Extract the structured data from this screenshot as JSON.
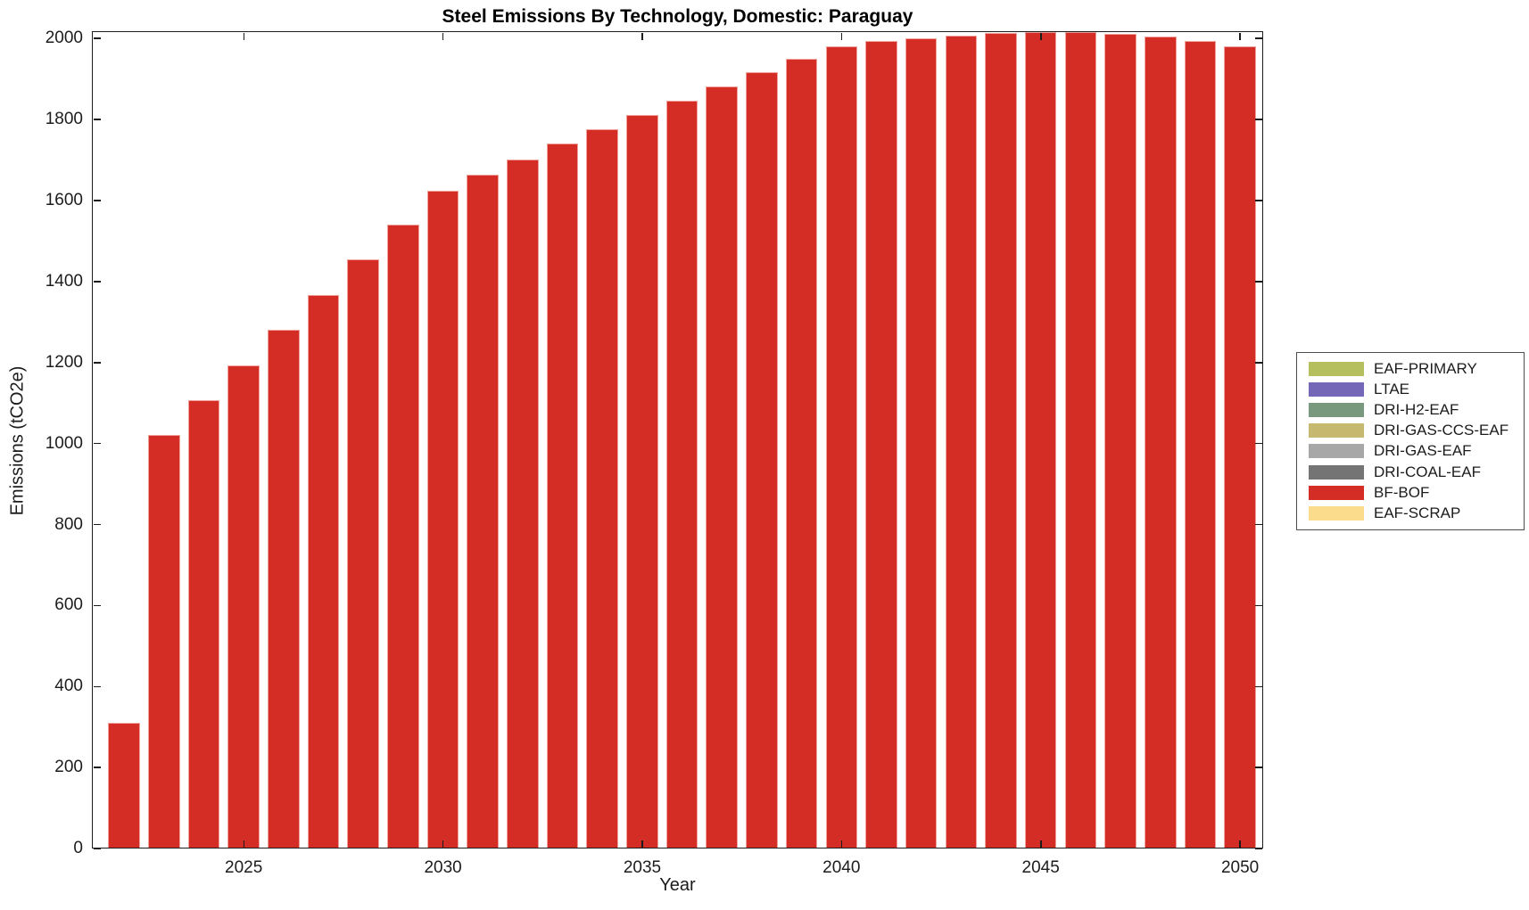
{
  "chart_data": {
    "type": "bar",
    "title": "Steel Emissions By Technology, Domestic: Paraguay",
    "xlabel": "Year",
    "ylabel": "Emissions (tCO2e)",
    "x": [
      2022,
      2023,
      2024,
      2025,
      2026,
      2027,
      2028,
      2029,
      2030,
      2031,
      2032,
      2033,
      2034,
      2035,
      2036,
      2037,
      2038,
      2039,
      2040,
      2041,
      2042,
      2043,
      2044,
      2045,
      2046,
      2047,
      2048,
      2049,
      2050
    ],
    "series": [
      {
        "name": "BF-BOF",
        "color": "#d32d26",
        "values": [
          310,
          1021,
          1108,
          1193,
          1280,
          1367,
          1454,
          1540,
          1625,
          1663,
          1702,
          1740,
          1777,
          1812,
          1847,
          1882,
          1917,
          1950,
          1980,
          1993,
          2001,
          2008,
          2013,
          2016,
          2016,
          2011,
          2005,
          1993,
          1981
        ]
      }
    ],
    "bar_edge_color": "#f0a29a",
    "bar_rel_width": 0.8,
    "xticks": [
      2025,
      2030,
      2035,
      2040,
      2045,
      2050
    ],
    "yticks": [
      0,
      200,
      400,
      600,
      800,
      1000,
      1200,
      1400,
      1600,
      1800,
      2000
    ],
    "xlim": [
      2021.19,
      2050.58
    ],
    "ylim": [
      0,
      2018
    ],
    "grid": false,
    "axis_color": "#1c1c1c",
    "legend": {
      "position": "right-outside",
      "entries": [
        {
          "label": "EAF-PRIMARY",
          "color": "#b6bf5e"
        },
        {
          "label": "LTAE",
          "color": "#7467b8"
        },
        {
          "label": "DRI-H2-EAF",
          "color": "#79997f"
        },
        {
          "label": "DRI-GAS-CCS-EAF",
          "color": "#c6b96f"
        },
        {
          "label": "DRI-GAS-EAF",
          "color": "#a7a7a7"
        },
        {
          "label": "DRI-COAL-EAF",
          "color": "#747474"
        },
        {
          "label": "BF-BOF",
          "color": "#d32d26"
        },
        {
          "label": "EAF-SCRAP",
          "color": "#fbdc8d"
        }
      ]
    }
  }
}
